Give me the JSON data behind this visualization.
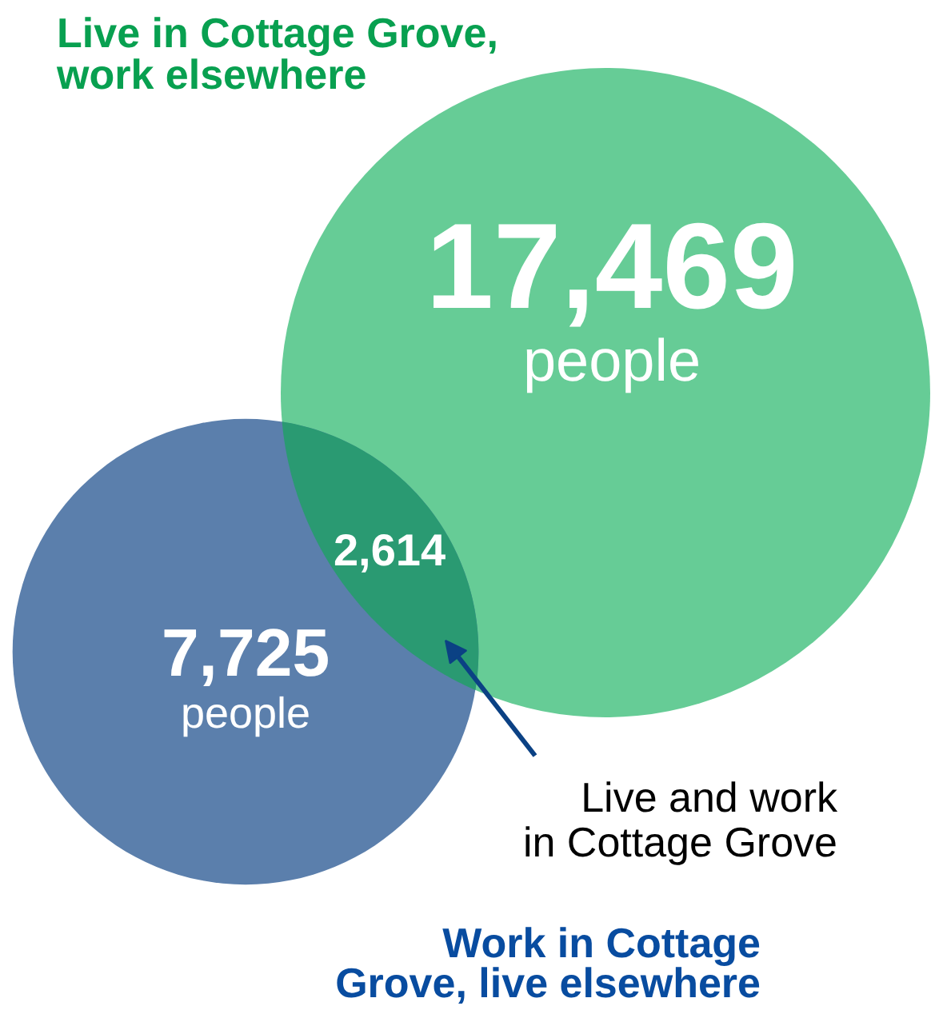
{
  "chart_data": {
    "type": "other",
    "categories": [
      "Live in Cottage Grove,\nwork elsewhere",
      "Work in Cottage\nGrove, live elsewhere",
      "Live and work\nin Cottage Grove"
    ],
    "values": [
      17469,
      7725,
      2614
    ],
    "value_labels": [
      "17,469\npeople",
      "7,725\npeople",
      "2,614"
    ],
    "colors": [
      "#66cc96",
      "#5b7fac",
      "#2a9a72"
    ]
  }
}
